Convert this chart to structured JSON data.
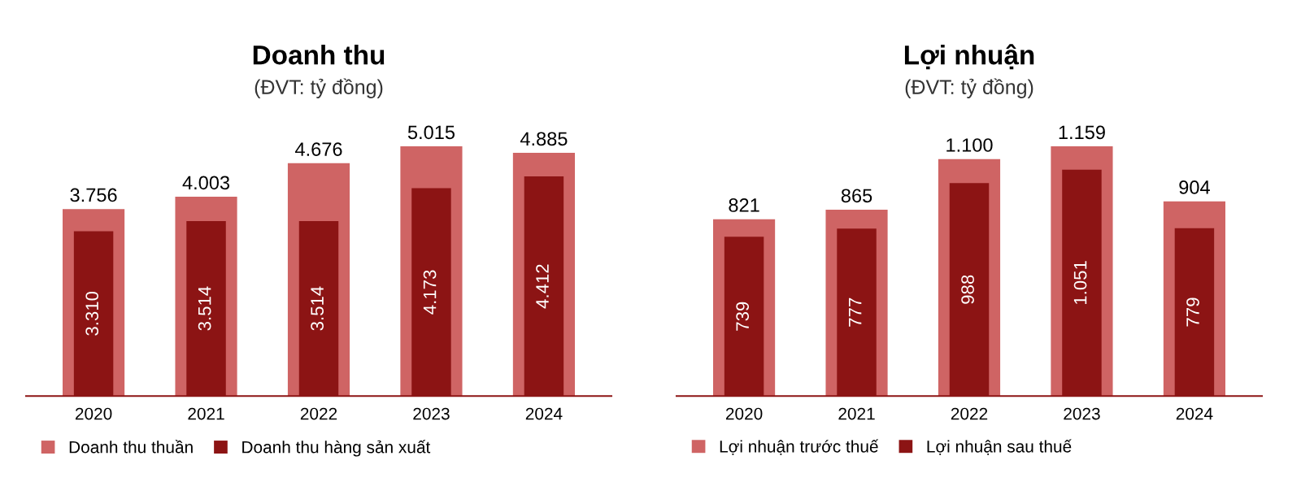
{
  "chart_data": [
    {
      "type": "bar",
      "title": "Doanh thu",
      "subtitle": "(ĐVT: tỷ đồng)",
      "categories": [
        "2020",
        "2021",
        "2022",
        "2023",
        "2024"
      ],
      "legend": "bottom",
      "series": [
        {
          "name": "Doanh thu thuần",
          "color": "#cf6464",
          "values": [
            3756,
            4003,
            4676,
            5015,
            4885
          ],
          "value_labels": [
            "3.756",
            "4.003",
            "4.676",
            "5.015",
            "4.885"
          ]
        },
        {
          "name": "Doanh thu hàng sản xuất",
          "color": "#8c1414",
          "values": [
            3310,
            3514,
            3514,
            4173,
            4412
          ],
          "value_labels": [
            "3.310",
            "3.514",
            "3.514",
            "4.173",
            "4.412"
          ]
        }
      ]
    },
    {
      "type": "bar",
      "title": "Lợi nhuận",
      "subtitle": "(ĐVT: tỷ đồng)",
      "categories": [
        "2020",
        "2021",
        "2022",
        "2023",
        "2024"
      ],
      "legend": "bottom",
      "series": [
        {
          "name": "Lợi nhuận trước thuế",
          "color": "#cf6464",
          "values": [
            821,
            865,
            1100,
            1159,
            904
          ],
          "value_labels": [
            "821",
            "865",
            "1.100",
            "1.159",
            "904"
          ]
        },
        {
          "name": "Lợi nhuận sau thuế",
          "color": "#8c1414",
          "values": [
            739,
            777,
            988,
            1051,
            779
          ],
          "value_labels": [
            "739",
            "777",
            "988",
            "1.051",
            "779"
          ]
        }
      ]
    }
  ]
}
